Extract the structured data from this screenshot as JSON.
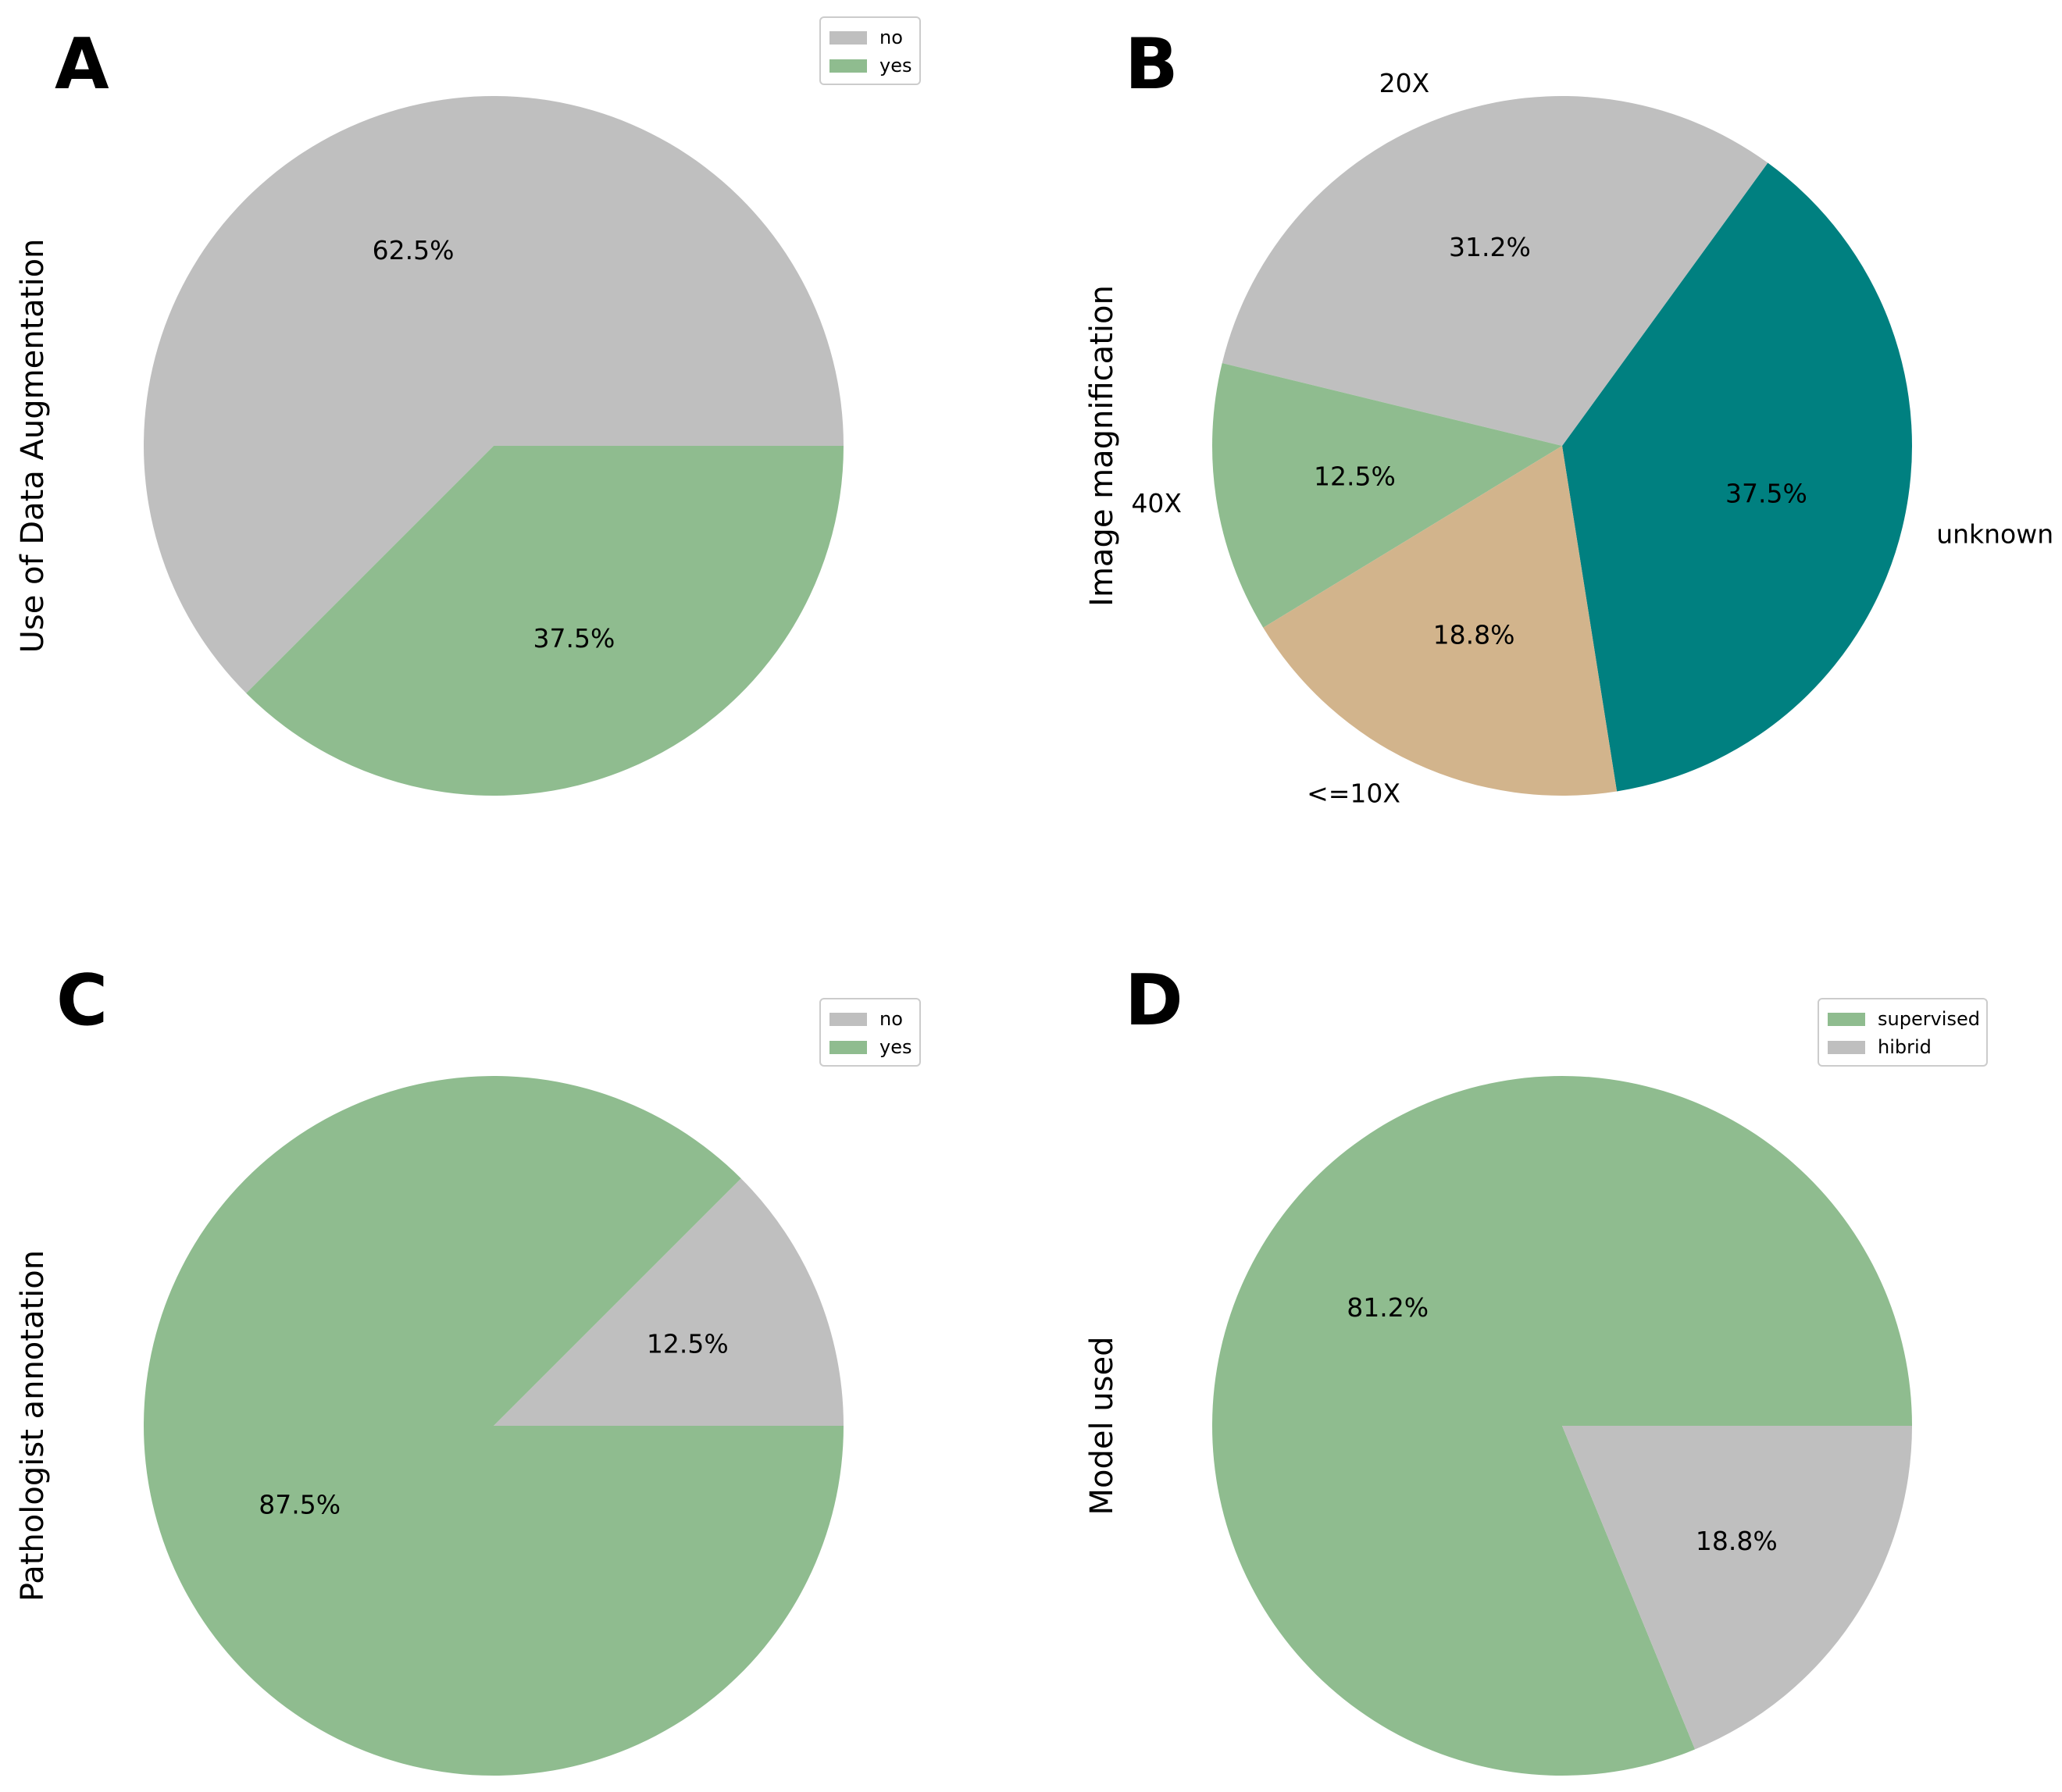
{
  "chart_data": [
    {
      "type": "pie",
      "panel": "A",
      "ylabel": "Use of Data Augmentation",
      "slices": [
        {
          "label": "no",
          "value": 62.5,
          "pct_label": "62.5%",
          "color": "#bfbfbf"
        },
        {
          "label": "yes",
          "value": 37.5,
          "pct_label": "37.5%",
          "color": "#8fbc8f"
        }
      ],
      "legend": {
        "placement": "top-right",
        "entries": [
          "no",
          "yes"
        ]
      }
    },
    {
      "type": "pie",
      "panel": "B",
      "ylabel": "Image magnification",
      "slices": [
        {
          "label": "unknown",
          "value": 37.5,
          "pct_label": "37.5%",
          "color": "#008080"
        },
        {
          "label": "20X",
          "value": 31.2,
          "pct_label": "31.2%",
          "color": "#bfbfbf"
        },
        {
          "label": "40X",
          "value": 12.5,
          "pct_label": "12.5%",
          "color": "#8fbc8f"
        },
        {
          "label": "<=10X",
          "value": 18.8,
          "pct_label": "18.8%",
          "color": "#d2b48c"
        }
      ]
    },
    {
      "type": "pie",
      "panel": "C",
      "ylabel": "Pathologist annotation",
      "slices": [
        {
          "label": "no",
          "value": 12.5,
          "pct_label": "12.5%",
          "color": "#bfbfbf"
        },
        {
          "label": "yes",
          "value": 87.5,
          "pct_label": "87.5%",
          "color": "#8fbc8f"
        }
      ],
      "legend": {
        "placement": "top-right",
        "entries": [
          "no",
          "yes"
        ]
      }
    },
    {
      "type": "pie",
      "panel": "D",
      "ylabel": "Model used",
      "slices": [
        {
          "label": "supervised",
          "value": 81.2,
          "pct_label": "81.2%",
          "color": "#8fbc8f"
        },
        {
          "label": "hibrid",
          "value": 18.8,
          "pct_label": "18.8%",
          "color": "#bfbfbf"
        }
      ],
      "legend": {
        "placement": "top-right",
        "entries": [
          "supervised",
          "hibrid"
        ]
      }
    }
  ]
}
